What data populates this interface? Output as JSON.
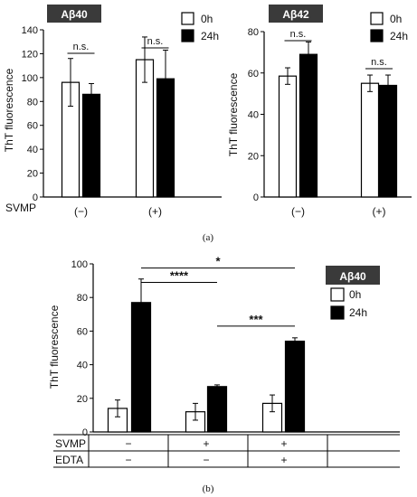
{
  "chart_data": [
    {
      "id": "a-left",
      "type": "bar",
      "tag": "Aβ40",
      "ylabel": "ThT fluorescence",
      "ylim": [
        0,
        140
      ],
      "yticks": [
        "0",
        "20",
        "40",
        "60",
        "80",
        "100",
        "120",
        "140"
      ],
      "row_label": "SVMP",
      "categories": [
        "(−)",
        "(+)"
      ],
      "series": [
        {
          "name": "0h",
          "values": [
            96,
            115
          ],
          "errors": [
            20,
            19
          ]
        },
        {
          "name": "24h",
          "values": [
            86,
            99
          ],
          "errors": [
            9,
            24
          ]
        }
      ],
      "annotations": [
        "n.s.",
        "n.s."
      ],
      "legend_position": "top-right"
    },
    {
      "id": "a-right",
      "type": "bar",
      "tag": "Aβ42",
      "ylabel": "ThT fluorescence",
      "ylim": [
        0,
        80
      ],
      "yticks": [
        "0",
        "20",
        "40",
        "60",
        "80"
      ],
      "categories": [
        "(−)",
        "(+)"
      ],
      "series": [
        {
          "name": "0h",
          "values": [
            58.5,
            55
          ],
          "errors": [
            4,
            4
          ]
        },
        {
          "name": "24h",
          "values": [
            69,
            54
          ],
          "errors": [
            6,
            5
          ]
        }
      ],
      "annotations": [
        "n.s.",
        "n.s."
      ],
      "legend_position": "top-right"
    },
    {
      "id": "b",
      "type": "bar",
      "tag": "Aβ40",
      "ylabel": "ThT fluorescence",
      "ylim": [
        0,
        100
      ],
      "yticks": [
        "0",
        "20",
        "40",
        "60",
        "80",
        "100"
      ],
      "conditions": [
        {
          "name": "SVMP",
          "values": [
            "−",
            "+",
            "+"
          ]
        },
        {
          "name": "EDTA",
          "values": [
            "−",
            "−",
            "+"
          ]
        }
      ],
      "series": [
        {
          "name": "0h",
          "values": [
            14,
            12,
            17
          ],
          "errors": [
            5,
            5,
            5
          ]
        },
        {
          "name": "24h",
          "values": [
            77,
            27,
            54
          ],
          "errors": [
            14,
            1,
            2
          ]
        }
      ],
      "significance": [
        "*",
        "****",
        "***"
      ],
      "legend_position": "right"
    }
  ],
  "captions": [
    "(a)",
    "(b)"
  ],
  "legend": [
    "0h",
    "24h"
  ]
}
